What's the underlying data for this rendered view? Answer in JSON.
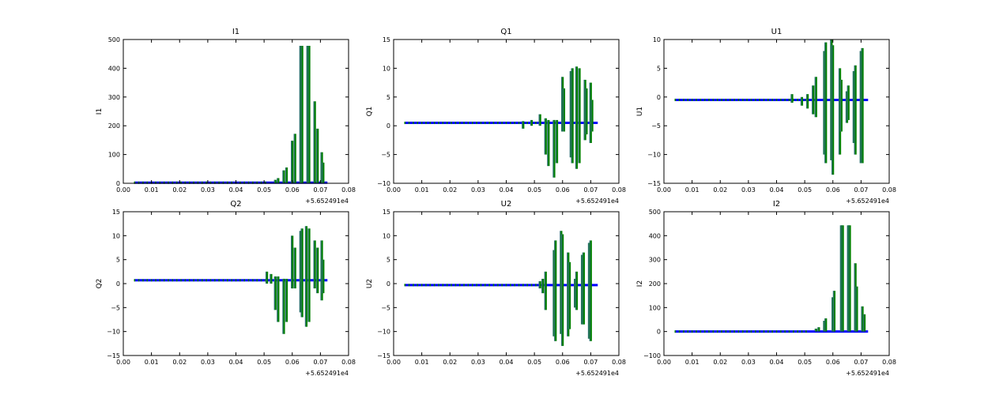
{
  "chart_data": [
    {
      "type": "line",
      "title": "I1",
      "ylabel": "I1",
      "xlim": [
        0,
        0.08
      ],
      "ylim": [
        0,
        500
      ],
      "yticks": [
        0,
        100,
        200,
        300,
        400,
        500
      ],
      "baseline": 2,
      "offset_label": "+5.652491e4",
      "spikes": [
        [
          0.054,
          0,
          12
        ],
        [
          0.055,
          0,
          18
        ],
        [
          0.057,
          0,
          45
        ],
        [
          0.058,
          0,
          55
        ],
        [
          0.06,
          0,
          148
        ],
        [
          0.061,
          0,
          172
        ],
        [
          0.063,
          0,
          478
        ],
        [
          0.0635,
          0,
          478
        ],
        [
          0.0655,
          0,
          478
        ],
        [
          0.066,
          0,
          478
        ],
        [
          0.068,
          0,
          285
        ],
        [
          0.069,
          0,
          190
        ],
        [
          0.0705,
          0,
          108
        ],
        [
          0.071,
          0,
          72
        ]
      ]
    },
    {
      "type": "line",
      "title": "Q1",
      "ylabel": "Q1",
      "xlim": [
        0,
        0.08
      ],
      "ylim": [
        -10,
        15
      ],
      "yticks": [
        -10,
        -5,
        0,
        5,
        10,
        15
      ],
      "baseline": 0.5,
      "offset_label": "+5.652491e4",
      "spikes": [
        [
          0.046,
          -0.5,
          0.8
        ],
        [
          0.049,
          0,
          1
        ],
        [
          0.052,
          0,
          2
        ],
        [
          0.054,
          -5,
          1.3
        ],
        [
          0.055,
          -7,
          1
        ],
        [
          0.057,
          -9,
          1
        ],
        [
          0.058,
          -6.5,
          1
        ],
        [
          0.06,
          -1,
          8.5
        ],
        [
          0.0605,
          -1,
          6.5
        ],
        [
          0.063,
          -5.5,
          9.5
        ],
        [
          0.0635,
          -6.5,
          10
        ],
        [
          0.065,
          -7.5,
          10.3
        ],
        [
          0.066,
          -6.5,
          10
        ],
        [
          0.068,
          -2.5,
          8
        ],
        [
          0.0685,
          -1.5,
          6.5
        ],
        [
          0.07,
          -3,
          7.5
        ],
        [
          0.0705,
          -1,
          4.5
        ]
      ]
    },
    {
      "type": "line",
      "title": "U1",
      "ylabel": "U1",
      "xlim": [
        0,
        0.08
      ],
      "ylim": [
        -15,
        10
      ],
      "yticks": [
        -15,
        -10,
        -5,
        0,
        5,
        10
      ],
      "baseline": -0.5,
      "offset_label": "+5.652491e4",
      "spikes": [
        [
          0.0455,
          -1,
          0.5
        ],
        [
          0.049,
          -1.5,
          0
        ],
        [
          0.051,
          -2,
          0.5
        ],
        [
          0.053,
          -3,
          2
        ],
        [
          0.054,
          -3.5,
          3.5
        ],
        [
          0.057,
          -10,
          8
        ],
        [
          0.0575,
          -11.5,
          9.5
        ],
        [
          0.0595,
          -11,
          10
        ],
        [
          0.06,
          -13.5,
          9
        ],
        [
          0.0625,
          -10,
          5
        ],
        [
          0.063,
          -6,
          3
        ],
        [
          0.065,
          -4.5,
          1
        ],
        [
          0.0655,
          -4,
          2
        ],
        [
          0.0675,
          -8,
          4.5
        ],
        [
          0.068,
          -10,
          5.5
        ],
        [
          0.07,
          -11.5,
          8
        ],
        [
          0.0705,
          -11.5,
          8.5
        ]
      ]
    },
    {
      "type": "line",
      "title": "Q2",
      "ylabel": "Q2",
      "xlim": [
        0,
        0.08
      ],
      "ylim": [
        -15,
        15
      ],
      "yticks": [
        -15,
        -10,
        -5,
        0,
        5,
        10,
        15
      ],
      "baseline": 0.7,
      "offset_label": "+5.652491e4",
      "spikes": [
        [
          0.051,
          0,
          2.5
        ],
        [
          0.0525,
          0,
          2
        ],
        [
          0.054,
          -5.5,
          1.5
        ],
        [
          0.055,
          -8,
          1.5
        ],
        [
          0.057,
          -10.5,
          1
        ],
        [
          0.058,
          -8,
          1
        ],
        [
          0.06,
          -1,
          10
        ],
        [
          0.061,
          -1,
          7.5
        ],
        [
          0.063,
          -6,
          11
        ],
        [
          0.0635,
          -7,
          11.5
        ],
        [
          0.065,
          -9,
          12
        ],
        [
          0.066,
          -8,
          11.5
        ],
        [
          0.068,
          -1,
          9
        ],
        [
          0.069,
          -2,
          7.5
        ],
        [
          0.0705,
          -3.5,
          9
        ],
        [
          0.071,
          -2,
          5
        ]
      ]
    },
    {
      "type": "line",
      "title": "U2",
      "ylabel": "U2",
      "xlim": [
        0,
        0.08
      ],
      "ylim": [
        -15,
        15
      ],
      "yticks": [
        -15,
        -10,
        -5,
        0,
        5,
        10,
        15
      ],
      "baseline": -0.3,
      "offset_label": "+5.652491e4",
      "spikes": [
        [
          0.052,
          -1,
          0.5
        ],
        [
          0.053,
          -2,
          1
        ],
        [
          0.054,
          -5.5,
          2.5
        ],
        [
          0.057,
          -11,
          7
        ],
        [
          0.0575,
          -12,
          9
        ],
        [
          0.0595,
          -10.5,
          11
        ],
        [
          0.06,
          -13,
          10.3
        ],
        [
          0.062,
          -11,
          6.5
        ],
        [
          0.0625,
          -9.5,
          4.5
        ],
        [
          0.0645,
          -5,
          1
        ],
        [
          0.065,
          -5.5,
          2.5
        ],
        [
          0.067,
          -8.5,
          6
        ],
        [
          0.0675,
          -8.5,
          6.5
        ],
        [
          0.0695,
          -11.5,
          8.5
        ],
        [
          0.07,
          -12,
          9
        ]
      ]
    },
    {
      "type": "line",
      "title": "I2",
      "ylabel": "I2",
      "xlim": [
        0,
        0.08
      ],
      "ylim": [
        -100,
        500
      ],
      "yticks": [
        -100,
        0,
        100,
        200,
        300,
        400,
        500
      ],
      "baseline": 0,
      "offset_label": "+5.652491e4",
      "spikes": [
        [
          0.054,
          0,
          12
        ],
        [
          0.055,
          0,
          18
        ],
        [
          0.057,
          0,
          45
        ],
        [
          0.0575,
          0,
          55
        ],
        [
          0.06,
          0,
          143
        ],
        [
          0.0605,
          0,
          170
        ],
        [
          0.063,
          0,
          443
        ],
        [
          0.0635,
          0,
          443
        ],
        [
          0.0655,
          0,
          443
        ],
        [
          0.066,
          0,
          443
        ],
        [
          0.068,
          0,
          285
        ],
        [
          0.0685,
          0,
          188
        ],
        [
          0.0705,
          0,
          105
        ],
        [
          0.0712,
          0,
          72
        ]
      ]
    }
  ],
  "xticks": [
    "0.00",
    "0.01",
    "0.02",
    "0.03",
    "0.04",
    "0.05",
    "0.06",
    "0.07",
    "0.08"
  ],
  "baseline_range": [
    0.004,
    0.0725
  ],
  "colors": {
    "baseline": "#0000ff",
    "spike": "#008000",
    "spike_edge": "#2a6f6f"
  }
}
